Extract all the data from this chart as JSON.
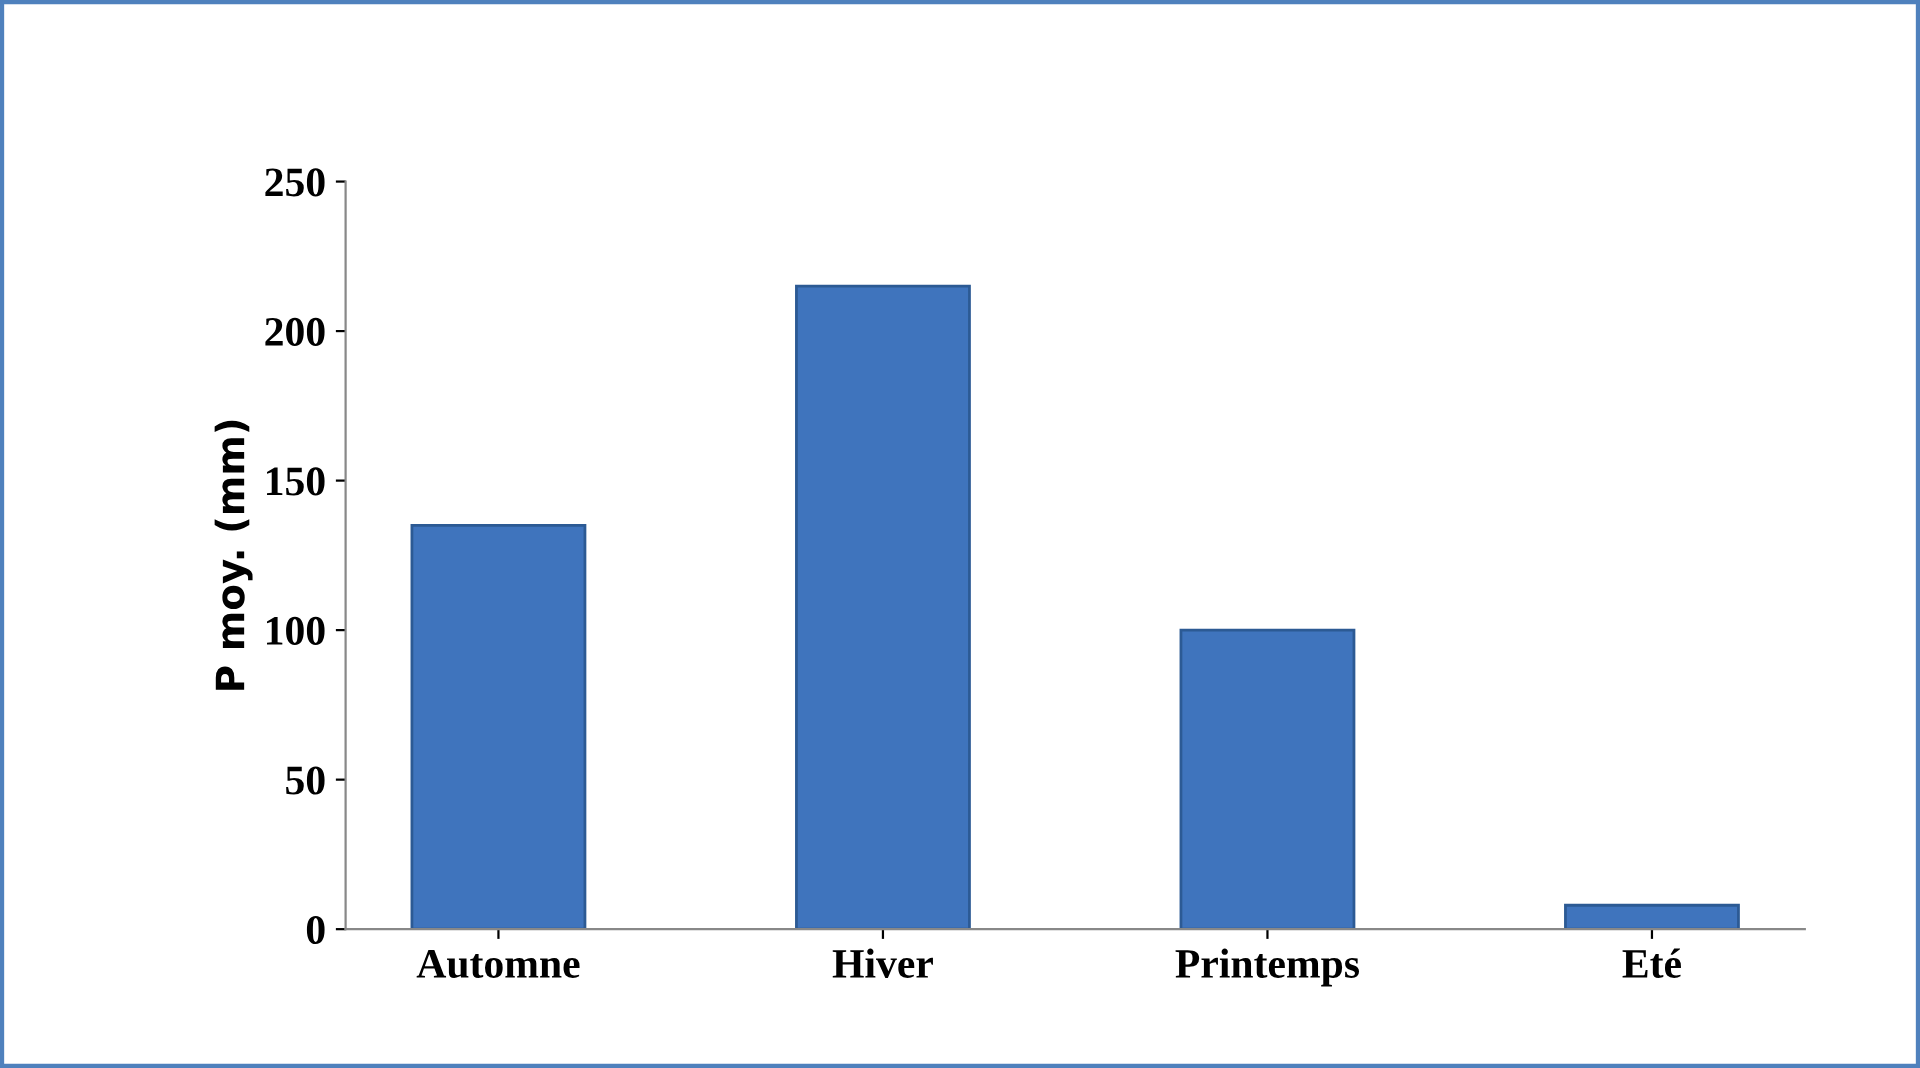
{
  "chart_data": {
    "type": "bar",
    "ylabel": "P moy. (mm)",
    "categories": [
      "Automne",
      "Hiver",
      "Printemps",
      "Eté"
    ],
    "values": [
      135,
      215,
      100,
      8
    ],
    "color": "#3f74bd",
    "ylim": [
      0,
      250
    ],
    "yticks": [
      0,
      50,
      100,
      150,
      200,
      250
    ],
    "grid": false
  }
}
